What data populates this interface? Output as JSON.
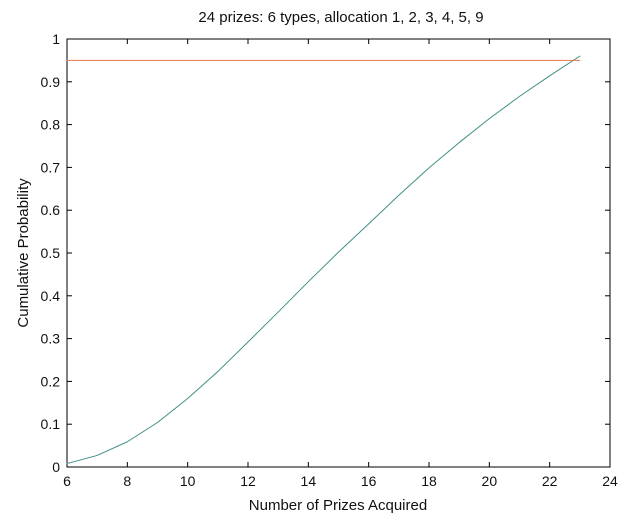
{
  "chart_data": {
    "type": "line",
    "title": "24 prizes: 6 types, allocation 1, 2, 3, 4, 5, 9",
    "xlabel": "Number of Prizes Acquired",
    "ylabel": "Cumulative Probability",
    "xlim": [
      6,
      24
    ],
    "ylim": [
      0,
      1
    ],
    "xticks": [
      6,
      8,
      10,
      12,
      14,
      16,
      18,
      20,
      22,
      24
    ],
    "yticks": [
      0,
      0.1,
      0.2,
      0.3,
      0.4,
      0.5,
      0.6,
      0.7,
      0.8,
      0.9,
      1
    ],
    "xtick_labels": [
      "6",
      "8",
      "10",
      "12",
      "14",
      "16",
      "18",
      "20",
      "22",
      "24"
    ],
    "ytick_labels": [
      "0",
      "0.1",
      "0.2",
      "0.3",
      "0.4",
      "0.5",
      "0.6",
      "0.7",
      "0.8",
      "0.9",
      "1"
    ],
    "grid": false,
    "series": [
      {
        "x": [
          6,
          7,
          8,
          9,
          10,
          11,
          12,
          13,
          14,
          15,
          16,
          17,
          18,
          19,
          20,
          21,
          22,
          23
        ],
        "values": [
          0.008,
          0.027,
          0.059,
          0.104,
          0.16,
          0.223,
          0.292,
          0.362,
          0.433,
          0.502,
          0.568,
          0.635,
          0.699,
          0.758,
          0.814,
          0.866,
          0.914,
          0.96
        ],
        "color": "#3f8f86"
      },
      {
        "x": [
          6,
          23
        ],
        "values": [
          0.95,
          0.95
        ],
        "color": "#e8764c"
      }
    ]
  }
}
